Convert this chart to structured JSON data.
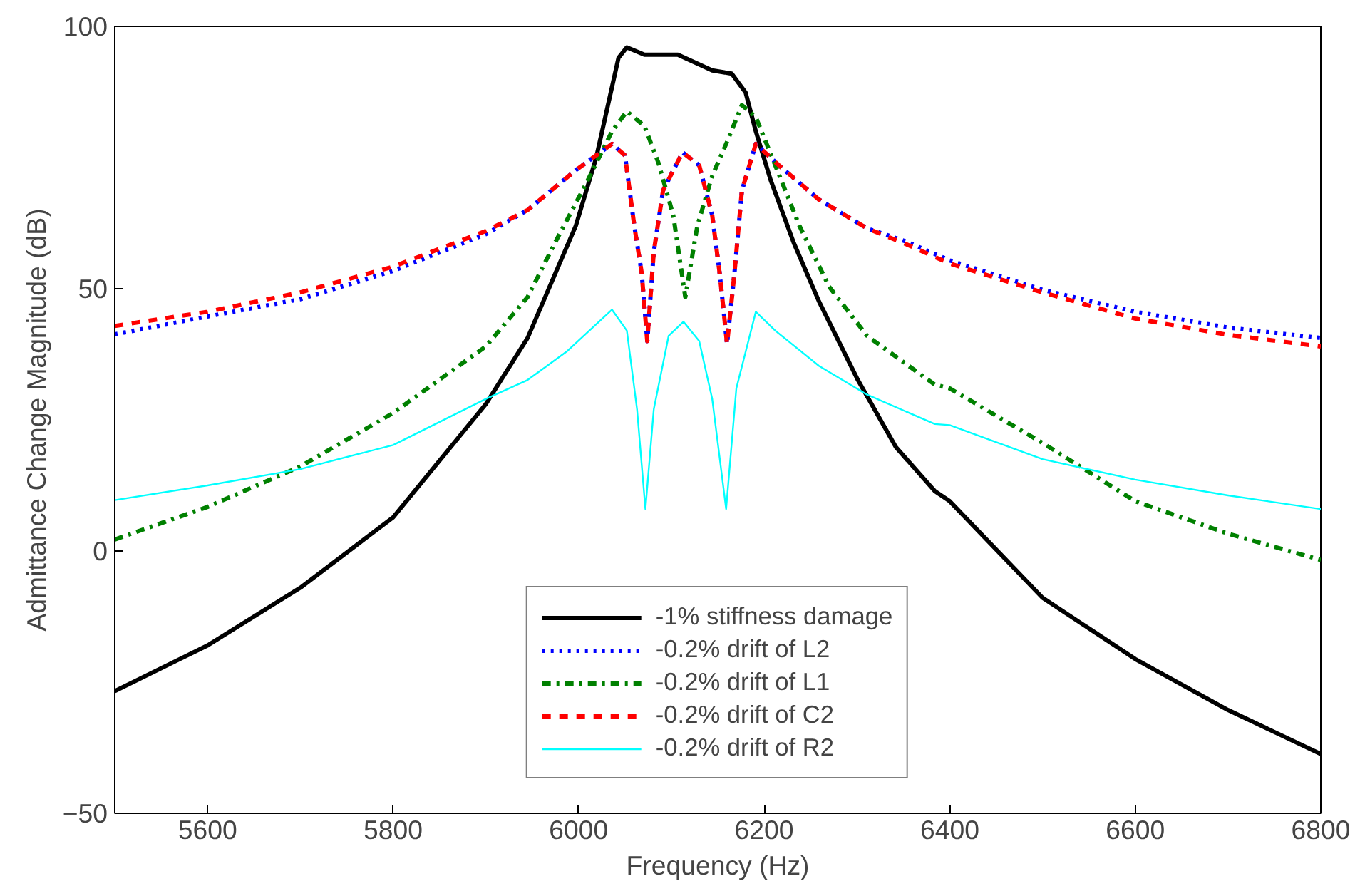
{
  "chart_data": {
    "type": "line",
    "xlabel": "Frequency (Hz)",
    "ylabel": "Admittance Change Magnitude (dB)",
    "xlim": [
      5500,
      6800
    ],
    "xticks": [
      5600,
      5800,
      6000,
      6200,
      6400,
      6600,
      6800
    ],
    "ylim": [
      -50,
      100
    ],
    "yticks": [
      -50,
      0,
      50,
      100
    ],
    "grid": false,
    "legend": "bottom",
    "series": [
      {
        "name": "-1% stiffness damage",
        "color": "#000000",
        "line_style": "solid",
        "x": [
          5500,
          5600,
          5700,
          5800,
          5900,
          5945,
          5997,
          6019,
          6043,
          6052,
          6071,
          6107,
          6144,
          6165,
          6180,
          6191,
          6207,
          6232,
          6259,
          6301,
          6342,
          6384,
          6400,
          6500,
          6600,
          6700,
          6800
        ],
        "values": [
          -26.7,
          -18,
          -7,
          6.4,
          28,
          40.6,
          62,
          75,
          94,
          96,
          94.6,
          94.6,
          91.6,
          91,
          87.4,
          80,
          70.7,
          58.7,
          47.6,
          32.6,
          19.8,
          11.4,
          9.5,
          -8.9,
          -20.6,
          -30.3,
          -38.7
        ]
      },
      {
        "name": "-0.2% drift of L2",
        "color": "#0000ff",
        "line_style": "dotted",
        "x": [
          5500,
          5600,
          5700,
          5800,
          5900,
          5945,
          5997,
          6036,
          6050,
          6060,
          6068,
          6074,
          6081,
          6091,
          6112,
          6130,
          6144,
          6152,
          6160,
          6168,
          6176,
          6191,
          6216,
          6259,
          6311,
          6353,
          6400,
          6500,
          6600,
          6700,
          6800
        ],
        "values": [
          41.3,
          44.7,
          48,
          53.4,
          60.4,
          65,
          72.6,
          77.6,
          75.4,
          62,
          53,
          40,
          57,
          68.7,
          76,
          73.5,
          64,
          53,
          39.5,
          53,
          68.7,
          77.6,
          73.5,
          67,
          61.5,
          59,
          55.4,
          49.8,
          45.6,
          42.6,
          40.6
        ]
      },
      {
        "name": "-0.2% drift of L1",
        "color": "#008000",
        "line_style": "dashdot",
        "x": [
          5500,
          5600,
          5700,
          5800,
          5900,
          5945,
          5977,
          6008,
          6036,
          6052,
          6071,
          6086,
          6102,
          6115,
          6128,
          6144,
          6160,
          6176,
          6191,
          6212,
          6238,
          6270,
          6311,
          6384,
          6400,
          6500,
          6600,
          6700,
          6800
        ],
        "values": [
          2.2,
          8.4,
          16.1,
          26.3,
          39,
          48.4,
          59.6,
          70,
          80,
          83.8,
          81,
          74,
          64,
          48.4,
          62,
          71.5,
          78,
          85,
          82.7,
          73.5,
          62,
          50.4,
          41,
          31.7,
          31,
          20.6,
          9.5,
          3.3,
          -1.7
        ]
      },
      {
        "name": "-0.2% drift of C2",
        "color": "#ff0000",
        "line_style": "dashed",
        "x": [
          5500,
          5600,
          5700,
          5800,
          5900,
          5945,
          5997,
          6036,
          6050,
          6060,
          6068,
          6074,
          6081,
          6091,
          6112,
          6130,
          6144,
          6152,
          6160,
          6168,
          6176,
          6191,
          6216,
          6259,
          6311,
          6353,
          6400,
          6500,
          6600,
          6700,
          6800
        ],
        "values": [
          42.9,
          45.6,
          49.3,
          54.2,
          61,
          65,
          72.6,
          77.6,
          75.4,
          62,
          53,
          40,
          57,
          68.7,
          76,
          73.5,
          64,
          53,
          39.5,
          53,
          68.7,
          77.6,
          73.5,
          67,
          61.5,
          58.5,
          54.8,
          49.3,
          44.3,
          41.2,
          39
        ]
      },
      {
        "name": "-0.2% drift of R2",
        "color": "#00ffff",
        "line_style": "solid",
        "x": [
          5500,
          5600,
          5700,
          5800,
          5900,
          5945,
          5987,
          6036,
          6052,
          6063,
          6072,
          6081,
          6097,
          6113,
          6130,
          6144,
          6159,
          6170,
          6191,
          6212,
          6259,
          6311,
          6384,
          6400,
          6500,
          6600,
          6700,
          6800
        ],
        "values": [
          9.7,
          12.5,
          15.6,
          20.2,
          29,
          32.6,
          38,
          46,
          42,
          27,
          8,
          27,
          41,
          43.7,
          40,
          29,
          8,
          31,
          45.6,
          42,
          35.3,
          29.8,
          24.2,
          24,
          17.5,
          13.6,
          10.6,
          8
        ]
      }
    ]
  }
}
